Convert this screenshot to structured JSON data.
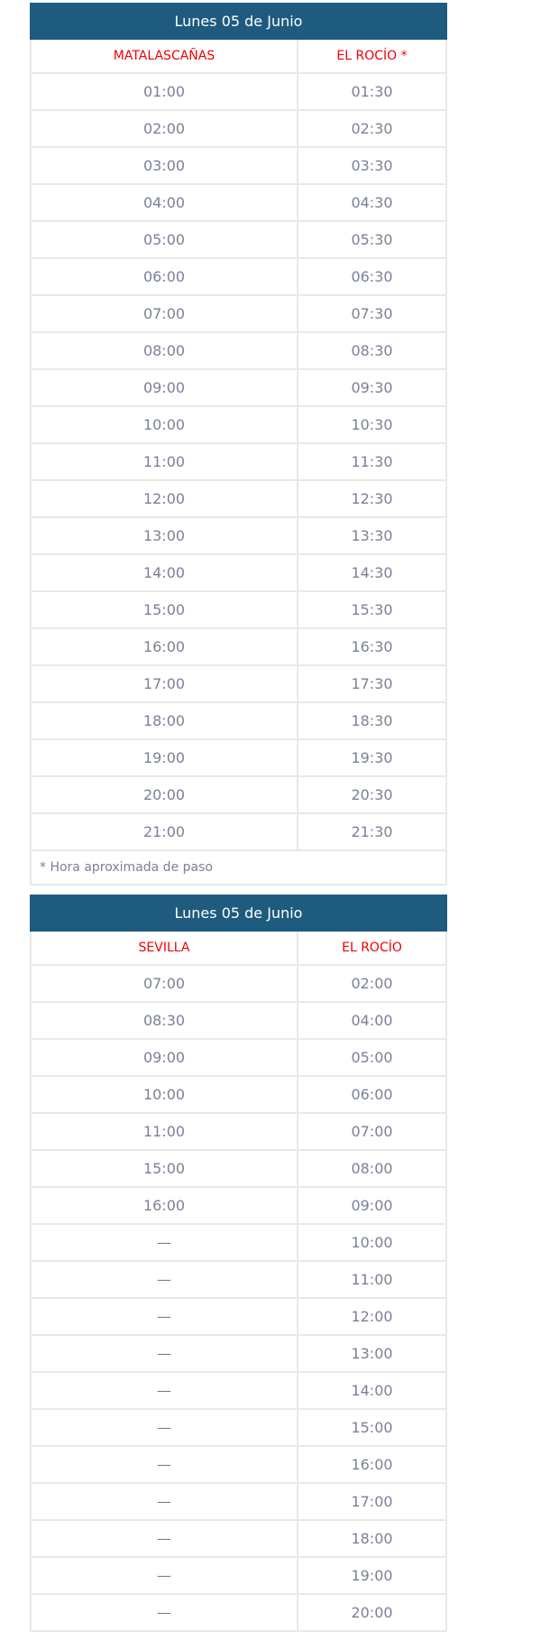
{
  "schedules": [
    {
      "title": "Lunes 05 de Junio",
      "columns": [
        "MATALASCAÑAS",
        "EL ROCÍO *"
      ],
      "rows": [
        [
          "01:00",
          "01:30"
        ],
        [
          "02:00",
          "02:30"
        ],
        [
          "03:00",
          "03:30"
        ],
        [
          "04:00",
          "04:30"
        ],
        [
          "05:00",
          "05:30"
        ],
        [
          "06:00",
          "06:30"
        ],
        [
          "07:00",
          "07:30"
        ],
        [
          "08:00",
          "08:30"
        ],
        [
          "09:00",
          "09:30"
        ],
        [
          "10:00",
          "10:30"
        ],
        [
          "11:00",
          "11:30"
        ],
        [
          "12:00",
          "12:30"
        ],
        [
          "13:00",
          "13:30"
        ],
        [
          "14:00",
          "14:30"
        ],
        [
          "15:00",
          "15:30"
        ],
        [
          "16:00",
          "16:30"
        ],
        [
          "17:00",
          "17:30"
        ],
        [
          "18:00",
          "18:30"
        ],
        [
          "19:00",
          "19:30"
        ],
        [
          "20:00",
          "20:30"
        ],
        [
          "21:00",
          "21:30"
        ]
      ],
      "note": "* Hora aproximada de paso"
    },
    {
      "title": "Lunes 05 de Junio",
      "columns": [
        "SEVILLA",
        "EL ROCÍO"
      ],
      "rows": [
        [
          "07:00",
          "02:00"
        ],
        [
          "08:30",
          "04:00"
        ],
        [
          "09:00",
          "05:00"
        ],
        [
          "10:00",
          "06:00"
        ],
        [
          "11:00",
          "07:00"
        ],
        [
          "15:00",
          "08:00"
        ],
        [
          "16:00",
          "09:00"
        ],
        [
          "—",
          "10:00"
        ],
        [
          "—",
          "11:00"
        ],
        [
          "—",
          "12:00"
        ],
        [
          "—",
          "13:00"
        ],
        [
          "—",
          "14:00"
        ],
        [
          "—",
          "15:00"
        ],
        [
          "—",
          "16:00"
        ],
        [
          "—",
          "17:00"
        ],
        [
          "—",
          "18:00"
        ],
        [
          "—",
          "19:00"
        ],
        [
          "—",
          "20:00"
        ]
      ]
    }
  ],
  "colors": {
    "header_bg": "#1e5b7e",
    "column_header": "#f00000",
    "cell_text": "#7b8098",
    "border": "#e8e8e8"
  }
}
